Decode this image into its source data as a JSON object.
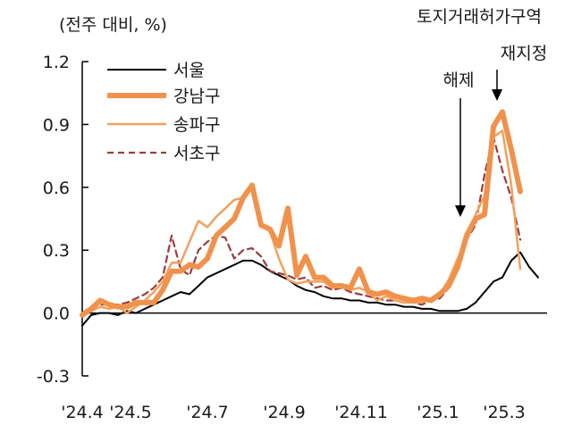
{
  "chart_data": {
    "type": "line",
    "unit_label": "(전주 대비, %)",
    "ylim": [
      -0.3,
      1.2
    ],
    "y_ticks": [
      1.2,
      0.9,
      0.6,
      0.3,
      0.0,
      -0.3
    ],
    "y_tick_labels": [
      "1.2",
      "0.9",
      "0.6",
      "0.3",
      "0.0",
      "-0.3"
    ],
    "x_tick_labels": [
      "'24.4",
      "'24.5",
      "'24.7",
      "'24.9",
      "'24.11",
      "'25.1",
      "'25.3"
    ],
    "x_tick_index": [
      0,
      5.4,
      14,
      22.6,
      31.2,
      39.8,
      47.2
    ],
    "x_max_index": 52,
    "legend_position": "top-left",
    "series": [
      {
        "name": "서울",
        "color": "#000000",
        "width": 2,
        "dash": "",
        "values": [
          -0.06,
          -0.01,
          0.0,
          0.0,
          -0.01,
          0.01,
          0.0,
          0.02,
          0.04,
          0.06,
          0.08,
          0.1,
          0.09,
          0.13,
          0.17,
          0.19,
          0.21,
          0.23,
          0.25,
          0.25,
          0.23,
          0.2,
          0.18,
          0.16,
          0.13,
          0.11,
          0.1,
          0.08,
          0.07,
          0.07,
          0.06,
          0.06,
          0.05,
          0.05,
          0.04,
          0.04,
          0.03,
          0.03,
          0.02,
          0.02,
          0.01,
          0.01,
          0.01,
          0.02,
          0.05,
          0.1,
          0.15,
          0.17,
          0.25,
          0.29,
          0.22,
          0.17
        ]
      },
      {
        "name": "강남구",
        "color": "#f0924c",
        "width": 6,
        "dash": "",
        "values": [
          -0.01,
          0.02,
          0.06,
          0.04,
          0.03,
          0.03,
          0.05,
          0.05,
          0.05,
          0.11,
          0.2,
          0.2,
          0.23,
          0.22,
          0.26,
          0.37,
          0.41,
          0.45,
          0.55,
          0.61,
          0.42,
          0.4,
          0.32,
          0.5,
          0.18,
          0.27,
          0.17,
          0.17,
          0.13,
          0.13,
          0.12,
          0.21,
          0.1,
          0.09,
          0.1,
          0.08,
          0.07,
          0.06,
          0.07,
          0.06,
          0.09,
          0.13,
          0.22,
          0.37,
          0.45,
          0.47,
          0.89,
          0.96,
          0.78,
          0.58
        ]
      },
      {
        "name": "송파구",
        "color": "#f2a15e",
        "width": 2.5,
        "dash": "",
        "values": [
          0.0,
          0.01,
          0.03,
          0.02,
          0.03,
          0.0,
          0.03,
          0.06,
          0.1,
          0.15,
          0.24,
          0.24,
          0.34,
          0.44,
          0.41,
          0.46,
          0.5,
          0.54,
          0.55,
          0.59,
          0.42,
          0.39,
          0.26,
          0.16,
          0.14,
          0.15,
          0.15,
          0.15,
          0.12,
          0.13,
          0.11,
          0.12,
          0.1,
          0.06,
          0.08,
          0.06,
          0.05,
          0.05,
          0.05,
          0.07,
          0.09,
          0.16,
          0.26,
          0.34,
          0.47,
          0.56,
          0.84,
          0.87,
          0.61,
          0.21
        ]
      },
      {
        "name": "서초구",
        "color": "#9c3d3d",
        "width": 2.2,
        "dash": "7,5",
        "values": [
          0.0,
          0.03,
          0.04,
          0.04,
          0.04,
          0.05,
          0.07,
          0.09,
          0.12,
          0.17,
          0.37,
          0.21,
          0.18,
          0.3,
          0.34,
          0.37,
          0.36,
          0.26,
          0.3,
          0.31,
          0.27,
          0.2,
          0.19,
          0.18,
          0.16,
          0.17,
          0.12,
          0.13,
          0.11,
          0.12,
          0.1,
          0.09,
          0.08,
          0.07,
          0.06,
          0.06,
          0.05,
          0.05,
          0.04,
          0.06,
          0.07,
          0.12,
          0.22,
          0.35,
          0.42,
          0.66,
          0.84,
          0.68,
          0.55,
          0.35
        ]
      }
    ],
    "annotations": [
      {
        "label": "해제",
        "x_index": 42.3,
        "y_value": 0.45
      },
      {
        "label": "토지거래허가구역",
        "x_index": 47.6,
        "y_value": 1.0
      },
      {
        "label": "재지정",
        "x_index": 47.6,
        "y_value": 1.0
      }
    ]
  }
}
